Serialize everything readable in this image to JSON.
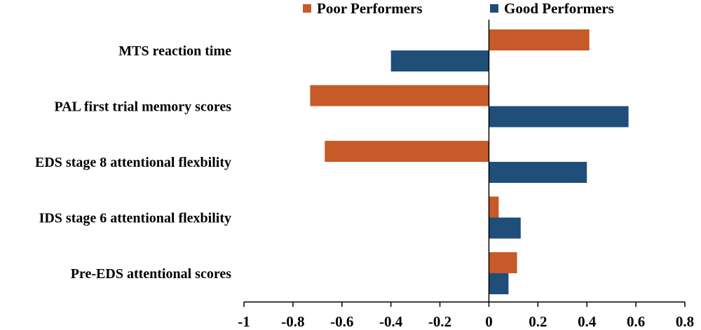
{
  "chart_data": {
    "type": "bar",
    "orientation": "horizontal",
    "title": "",
    "xlabel": "",
    "ylabel": "",
    "xlim": [
      -1,
      0.8
    ],
    "xticks": [
      -1,
      -0.8,
      -0.6,
      -0.4,
      -0.2,
      0,
      0.2,
      0.4,
      0.6,
      0.8
    ],
    "xtick_labels": [
      "-1",
      "-0.8",
      "-0.6",
      "-0.4",
      "-0.2",
      "0",
      "0.2",
      "0.4",
      "0.6",
      "0.8"
    ],
    "grid": false,
    "legend_position": "top",
    "categories": [
      "MTS reaction time",
      "PAL first trial memory scores",
      "EDS stage 8 attentional flexbility",
      "IDS stage 6 attentional flexbility",
      "Pre-EDS attentional scores"
    ],
    "series": [
      {
        "name": "Poor Performers",
        "color": "#c65a28",
        "values": [
          0.41,
          -0.73,
          -0.67,
          0.04,
          0.115
        ]
      },
      {
        "name": "Good Performers",
        "color": "#1f4e79",
        "values": [
          -0.4,
          0.57,
          0.4,
          0.13,
          0.08
        ]
      }
    ]
  }
}
